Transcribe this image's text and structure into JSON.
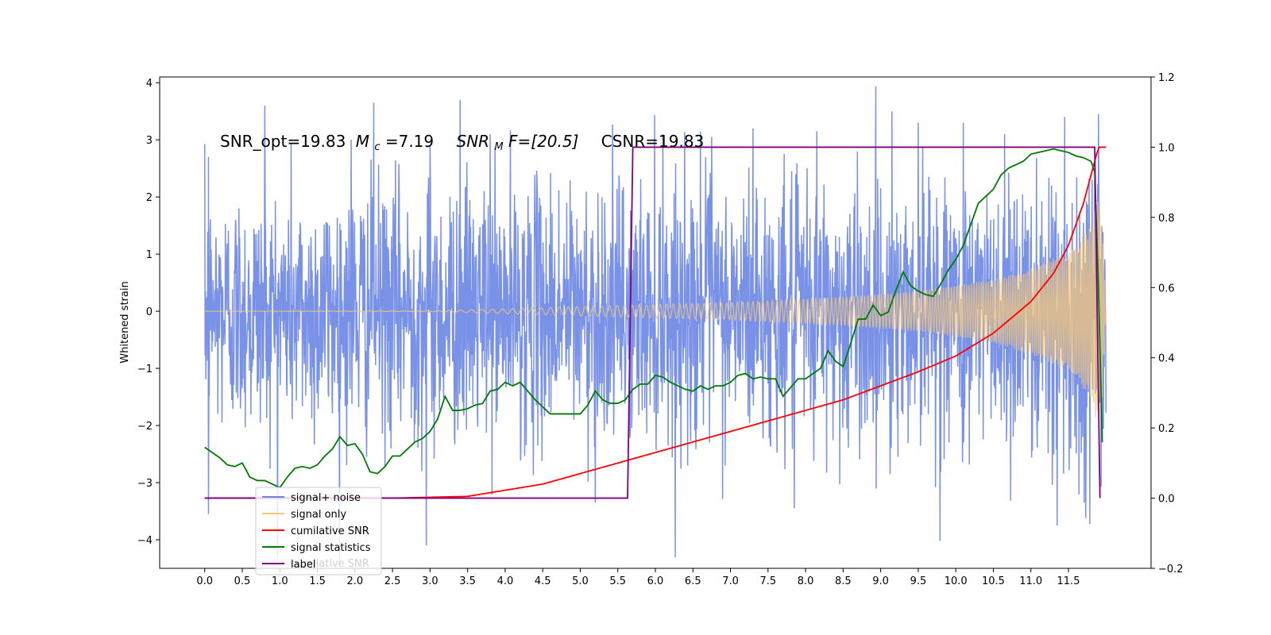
{
  "chart_data": {
    "type": "line",
    "title": "",
    "annotation": {
      "snr_opt": "SNR_opt=19.83",
      "mc_sym": "M",
      "mc_sub": "c",
      "mc_val": "=7.19",
      "snrmf_sym": "SNR",
      "snrmf_sub": "M",
      "snrmf_tail": "F=[20.5]",
      "csnr": "CSNR=19.83"
    },
    "xlabel": "",
    "ylabel": "Whitened strain",
    "xlim": [
      -0.6,
      12.6
    ],
    "ylim": [
      -4.5,
      4.1
    ],
    "y2lim": [
      -0.2,
      1.2
    ],
    "grid": false,
    "legend_position": "lower-left",
    "x_ticks": [
      "0.0",
      "0.5",
      "1.0",
      "1.5",
      "2.0",
      "2.5",
      "3.0",
      "3.5",
      "4.0",
      "4.5",
      "5.0",
      "5.5",
      "6.0",
      "6.5",
      "7.0",
      "7.5",
      "8.0",
      "8.5",
      "9.0",
      "9.5",
      "10.0",
      "10.5",
      "11.0",
      "11.5"
    ],
    "y_ticks": [
      "4",
      "3",
      "2",
      "1",
      "0",
      "−1",
      "−2",
      "−3",
      "−4"
    ],
    "y2_ticks": [
      "1.2",
      "1.0",
      "0.8",
      "0.6",
      "0.4",
      "0.2",
      "0.0",
      "−0.2"
    ],
    "legend": [
      {
        "label": "signal+ noise",
        "color": "#6a86e6"
      },
      {
        "label": "signal only",
        "color": "#f5c77a"
      },
      {
        "label": "cumilative SNR",
        "color": "#ff0000"
      },
      {
        "label": "signal statistics",
        "color": "#007a00"
      },
      {
        "label": "label",
        "color": "#800080"
      }
    ],
    "hidden_legend_text": "cumilative SNR",
    "series": [
      {
        "name": "signal+ noise",
        "axis": "left",
        "color": "#6a86e6",
        "x_range": [
          0.0,
          12.0
        ],
        "noise_envelope": [
          [
            0.0,
            1.7
          ],
          [
            3.0,
            1.8
          ],
          [
            6.0,
            1.8
          ],
          [
            9.0,
            1.85
          ],
          [
            11.5,
            1.9
          ],
          [
            12.0,
            1.6
          ]
        ],
        "extremes": [
          {
            "x": 0.05,
            "y": -3.55
          },
          {
            "x": 0.05,
            "y": 2.7
          },
          {
            "x": 0.8,
            "y": 3.6
          },
          {
            "x": 1.15,
            "y": 2.95
          },
          {
            "x": 1.95,
            "y": 3.0
          },
          {
            "x": 2.25,
            "y": 3.65
          },
          {
            "x": 2.95,
            "y": -4.1
          },
          {
            "x": 3.0,
            "y": 2.9
          },
          {
            "x": 3.4,
            "y": 3.7
          },
          {
            "x": 3.8,
            "y": 3.1
          },
          {
            "x": 5.2,
            "y": -3.35
          },
          {
            "x": 6.1,
            "y": 3.1
          },
          {
            "x": 6.6,
            "y": 3.15
          },
          {
            "x": 6.75,
            "y": 3.05
          },
          {
            "x": 7.3,
            "y": 3.2
          },
          {
            "x": 7.85,
            "y": -3.45
          },
          {
            "x": 8.15,
            "y": 3.15
          },
          {
            "x": 9.15,
            "y": 3.5
          },
          {
            "x": 9.5,
            "y": 3.3
          },
          {
            "x": 10.1,
            "y": 3.3
          },
          {
            "x": 10.65,
            "y": 3.1
          },
          {
            "x": 11.35,
            "y": -3.75
          },
          {
            "x": 11.45,
            "y": 3.4
          },
          {
            "x": 11.9,
            "y": 3.45
          },
          {
            "x": 11.95,
            "y": -2.3
          }
        ]
      },
      {
        "name": "signal only",
        "axis": "left",
        "color": "#f5c77a",
        "envelope": [
          [
            0.0,
            0.0
          ],
          [
            3.0,
            0.005
          ],
          [
            5.5,
            0.1
          ],
          [
            7.0,
            0.15
          ],
          [
            8.5,
            0.25
          ],
          [
            9.5,
            0.35
          ],
          [
            10.5,
            0.55
          ],
          [
            11.0,
            0.75
          ],
          [
            11.5,
            1.05
          ],
          [
            11.8,
            1.5
          ],
          [
            11.9,
            2.1
          ],
          [
            11.95,
            1.5
          ],
          [
            12.0,
            0.0
          ]
        ]
      },
      {
        "name": "cumilative SNR",
        "axis": "right",
        "color": "#ff0000",
        "points": [
          [
            0.0,
            0.0
          ],
          [
            2.5,
            0.0
          ],
          [
            3.5,
            0.005
          ],
          [
            4.5,
            0.04
          ],
          [
            5.5,
            0.1
          ],
          [
            6.5,
            0.16
          ],
          [
            7.5,
            0.22
          ],
          [
            8.5,
            0.28
          ],
          [
            9.0,
            0.32
          ],
          [
            9.5,
            0.36
          ],
          [
            10.0,
            0.405
          ],
          [
            10.5,
            0.47
          ],
          [
            11.0,
            0.56
          ],
          [
            11.3,
            0.64
          ],
          [
            11.5,
            0.72
          ],
          [
            11.7,
            0.84
          ],
          [
            11.85,
            0.96
          ],
          [
            11.9,
            1.0
          ],
          [
            12.0,
            1.0
          ]
        ]
      },
      {
        "name": "signal statistics",
        "axis": "right",
        "color": "#007a00",
        "points": [
          [
            0.0,
            0.145
          ],
          [
            0.1,
            0.13
          ],
          [
            0.2,
            0.115
          ],
          [
            0.3,
            0.095
          ],
          [
            0.4,
            0.09
          ],
          [
            0.5,
            0.1
          ],
          [
            0.6,
            0.06
          ],
          [
            0.7,
            0.05
          ],
          [
            0.8,
            0.05
          ],
          [
            0.9,
            0.04
          ],
          [
            1.0,
            0.03
          ],
          [
            1.1,
            0.06
          ],
          [
            1.2,
            0.085
          ],
          [
            1.3,
            0.09
          ],
          [
            1.4,
            0.085
          ],
          [
            1.5,
            0.095
          ],
          [
            1.6,
            0.12
          ],
          [
            1.7,
            0.14
          ],
          [
            1.8,
            0.175
          ],
          [
            1.9,
            0.15
          ],
          [
            2.0,
            0.155
          ],
          [
            2.1,
            0.125
          ],
          [
            2.2,
            0.075
          ],
          [
            2.3,
            0.07
          ],
          [
            2.4,
            0.09
          ],
          [
            2.5,
            0.12
          ],
          [
            2.6,
            0.12
          ],
          [
            2.7,
            0.14
          ],
          [
            2.8,
            0.16
          ],
          [
            2.9,
            0.17
          ],
          [
            3.0,
            0.19
          ],
          [
            3.1,
            0.225
          ],
          [
            3.2,
            0.29
          ],
          [
            3.3,
            0.25
          ],
          [
            3.4,
            0.25
          ],
          [
            3.5,
            0.255
          ],
          [
            3.6,
            0.265
          ],
          [
            3.7,
            0.27
          ],
          [
            3.8,
            0.305
          ],
          [
            3.9,
            0.31
          ],
          [
            4.0,
            0.33
          ],
          [
            4.1,
            0.32
          ],
          [
            4.2,
            0.33
          ],
          [
            4.3,
            0.305
          ],
          [
            4.4,
            0.28
          ],
          [
            4.5,
            0.26
          ],
          [
            4.6,
            0.24
          ],
          [
            4.7,
            0.24
          ],
          [
            4.8,
            0.24
          ],
          [
            4.9,
            0.24
          ],
          [
            5.0,
            0.24
          ],
          [
            5.1,
            0.265
          ],
          [
            5.2,
            0.305
          ],
          [
            5.3,
            0.28
          ],
          [
            5.4,
            0.27
          ],
          [
            5.5,
            0.27
          ],
          [
            5.6,
            0.28
          ],
          [
            5.7,
            0.31
          ],
          [
            5.8,
            0.325
          ],
          [
            5.9,
            0.325
          ],
          [
            6.0,
            0.35
          ],
          [
            6.1,
            0.345
          ],
          [
            6.2,
            0.33
          ],
          [
            6.3,
            0.32
          ],
          [
            6.4,
            0.31
          ],
          [
            6.5,
            0.305
          ],
          [
            6.6,
            0.32
          ],
          [
            6.7,
            0.31
          ],
          [
            6.8,
            0.32
          ],
          [
            6.9,
            0.32
          ],
          [
            7.0,
            0.33
          ],
          [
            7.1,
            0.35
          ],
          [
            7.2,
            0.355
          ],
          [
            7.3,
            0.34
          ],
          [
            7.4,
            0.345
          ],
          [
            7.5,
            0.34
          ],
          [
            7.6,
            0.34
          ],
          [
            7.7,
            0.29
          ],
          [
            7.8,
            0.315
          ],
          [
            7.9,
            0.34
          ],
          [
            8.0,
            0.34
          ],
          [
            8.1,
            0.355
          ],
          [
            8.2,
            0.37
          ],
          [
            8.3,
            0.42
          ],
          [
            8.4,
            0.39
          ],
          [
            8.5,
            0.375
          ],
          [
            8.6,
            0.44
          ],
          [
            8.7,
            0.51
          ],
          [
            8.8,
            0.51
          ],
          [
            8.9,
            0.55
          ],
          [
            9.0,
            0.52
          ],
          [
            9.1,
            0.53
          ],
          [
            9.2,
            0.59
          ],
          [
            9.3,
            0.645
          ],
          [
            9.4,
            0.605
          ],
          [
            9.5,
            0.59
          ],
          [
            9.6,
            0.58
          ],
          [
            9.7,
            0.575
          ],
          [
            9.8,
            0.61
          ],
          [
            9.9,
            0.65
          ],
          [
            10.0,
            0.68
          ],
          [
            10.1,
            0.72
          ],
          [
            10.2,
            0.78
          ],
          [
            10.3,
            0.84
          ],
          [
            10.4,
            0.86
          ],
          [
            10.5,
            0.88
          ],
          [
            10.6,
            0.92
          ],
          [
            10.7,
            0.94
          ],
          [
            10.8,
            0.95
          ],
          [
            10.9,
            0.96
          ],
          [
            11.0,
            0.98
          ],
          [
            11.1,
            0.985
          ],
          [
            11.2,
            0.99
          ],
          [
            11.3,
            0.995
          ],
          [
            11.4,
            0.99
          ],
          [
            11.5,
            0.985
          ],
          [
            11.6,
            0.975
          ],
          [
            11.7,
            0.97
          ],
          [
            11.8,
            0.96
          ],
          [
            11.85,
            0.93
          ],
          [
            11.9,
            0.6
          ],
          [
            11.95,
            0.16
          ]
        ]
      },
      {
        "name": "label",
        "axis": "right",
        "color": "#800080",
        "points": [
          [
            0.0,
            0.0
          ],
          [
            5.63,
            0.0
          ],
          [
            5.7,
            1.0
          ],
          [
            11.85,
            1.0
          ],
          [
            11.92,
            0.0
          ]
        ]
      }
    ]
  }
}
